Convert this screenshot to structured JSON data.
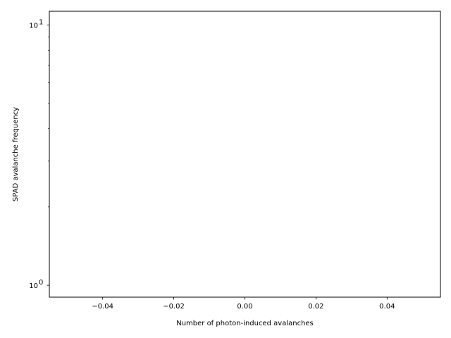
{
  "chart_data": {
    "type": "bar",
    "title": "",
    "xlabel": "Number of photon-induced avalanches",
    "ylabel": "SPAD avalanche frequency",
    "x_scale": "linear",
    "y_scale": "log",
    "xlim": [
      -0.055,
      0.055
    ],
    "ylim": [
      0.9,
      11.3
    ],
    "x_ticks": [
      -0.04,
      -0.02,
      0.0,
      0.02,
      0.04
    ],
    "x_tick_labels": [
      "−0.04",
      "−0.02",
      "0.00",
      "0.02",
      "0.04"
    ],
    "y_major_ticks": [
      1,
      10
    ],
    "y_major_tick_labels": [
      "10",
      "10"
    ],
    "y_major_tick_exponents": [
      "0",
      "1"
    ],
    "y_minor_ticks": [
      2,
      3,
      4,
      5,
      6,
      7,
      8,
      9
    ],
    "grid": false,
    "categories": [],
    "values": []
  }
}
